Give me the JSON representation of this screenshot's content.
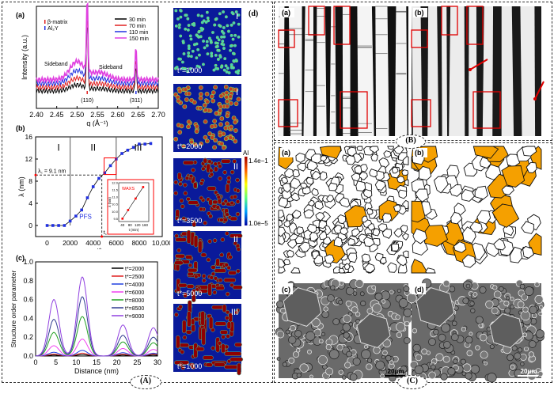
{
  "panel_labels": {
    "A": "(A)",
    "B": "(B)",
    "C": "(C)",
    "a": "(a)",
    "b": "(b)",
    "c": "(c)",
    "d": "(d)"
  },
  "chart_data": [
    {
      "id": "a",
      "type": "line",
      "xlabel": "q (Å⁻¹)",
      "ylabel": "Intensity (a.u.)",
      "xlim": [
        2.4,
        2.7
      ],
      "xticks": [
        "2.40",
        "2.45",
        "2.50",
        "2.55",
        "2.60",
        "2.65",
        "2.70"
      ],
      "legend_markers": [
        {
          "label": "β-matrix",
          "color": "#e02020"
        },
        {
          "label": "Al₂Y",
          "color": "#2030e0"
        }
      ],
      "annotations": [
        "Sideband",
        "Sideband",
        "(110)",
        "(311)"
      ],
      "peaks": {
        "q_110": 2.525,
        "q_311": 2.645,
        "sideband_low": 2.5,
        "sideband_high": 2.555
      },
      "series": [
        {
          "name": "30 min",
          "color": "#000000",
          "offset": 0.0,
          "sideband": 0.08
        },
        {
          "name": "70 min",
          "color": "#e02020",
          "offset": 0.05,
          "sideband": 0.12
        },
        {
          "name": "110 min",
          "color": "#2030e0",
          "offset": 0.1,
          "sideband": 0.17
        },
        {
          "name": "150 min",
          "color": "#e040e0",
          "offset": 0.15,
          "sideband": 0.24
        }
      ]
    },
    {
      "id": "b",
      "type": "scatter",
      "xlabel": "t*",
      "ylabel": "λ (nm)",
      "xlim": [
        -1000,
        10000
      ],
      "ylim": [
        -2,
        16
      ],
      "xticks": [
        "0",
        "2000",
        "4000",
        "6000",
        "8000",
        "10,000"
      ],
      "yticks": [
        "0",
        "4",
        "8",
        "12",
        "16"
      ],
      "regions": [
        "I",
        "II",
        "III"
      ],
      "region_bounds": [
        2000,
        6000
      ],
      "annotations": {
        "lambda_c": "λ꜀ = 9.1 nm",
        "tc": "t꜀",
        "pfs": "PFS"
      },
      "lambda_c": 9.1,
      "t_c": 4750,
      "x": [
        0,
        500,
        1000,
        1500,
        2000,
        2500,
        3000,
        3500,
        4000,
        4500,
        5000,
        5500,
        6000,
        6500,
        7000,
        7500,
        8000,
        8500,
        9000
      ],
      "y": [
        0,
        0,
        0,
        0,
        0.8,
        1.7,
        2.8,
        5.0,
        7.0,
        8.5,
        9.5,
        10.8,
        12.0,
        13.0,
        13.6,
        14.1,
        14.7,
        14.7,
        14.8
      ],
      "inset": {
        "title": "WAXS",
        "xlabel": "t (min)",
        "ylabel": "λ (nm)",
        "xlim": [
          20,
          180
        ],
        "ylim": [
          9.3,
          12.0
        ],
        "xticks": [
          "40",
          "80",
          "120",
          "160"
        ],
        "yticks": [
          "9.5",
          "10.0",
          "10.5",
          "11.0",
          "11.5",
          "12.0"
        ],
        "x": [
          40,
          70,
          110,
          150
        ],
        "y": [
          9.5,
          10.1,
          10.9,
          11.7
        ]
      }
    },
    {
      "id": "c",
      "type": "line",
      "xlabel": "Distance (nm)",
      "ylabel": "Structure order parameter",
      "xlim": [
        0,
        30
      ],
      "ylim": [
        0,
        1.0
      ],
      "xticks": [
        "0",
        "5",
        "10",
        "15",
        "20",
        "25",
        "30"
      ],
      "yticks": [
        "0.0",
        "0.2",
        "0.4",
        "0.6",
        "0.8",
        "1.0"
      ],
      "peak_positions": [
        4.5,
        11.5,
        21.5,
        29.0
      ],
      "series": [
        {
          "name": "t*=2000",
          "color": "#000000",
          "peaks": [
            0.01,
            0.015,
            0.01,
            0.01
          ]
        },
        {
          "name": "t*=2500",
          "color": "#e02020",
          "peaks": [
            0.02,
            0.03,
            0.02,
            0.02
          ]
        },
        {
          "name": "t*=4000",
          "color": "#2040e0",
          "peaks": [
            0.04,
            0.06,
            0.035,
            0.03
          ]
        },
        {
          "name": "t*=6000",
          "color": "#f040f0",
          "peaks": [
            0.11,
            0.18,
            0.08,
            0.07
          ]
        },
        {
          "name": "t*=8000",
          "color": "#20a020",
          "peaks": [
            0.25,
            0.42,
            0.15,
            0.14
          ]
        },
        {
          "name": "t*=8500",
          "color": "#303c90",
          "peaks": [
            0.39,
            0.63,
            0.22,
            0.2
          ]
        },
        {
          "name": "t*=9000",
          "color": "#9040e0",
          "peaks": [
            0.6,
            0.84,
            0.33,
            0.3
          ]
        }
      ]
    }
  ],
  "simulation": {
    "frames": [
      {
        "label": "t*=1000",
        "stage": "I"
      },
      {
        "label": "t*=2000",
        "stage": "I"
      },
      {
        "label": "t*=3500",
        "stage": "II"
      },
      {
        "label": "t*=5000",
        "stage": "II"
      },
      {
        "label": "t*=1000",
        "stage": "III"
      }
    ],
    "colorbar": {
      "title": "Al",
      "max": "1.4e−1",
      "min": "1.0e−5"
    }
  },
  "micrographs": {
    "scale_c": "20μm",
    "scale_d": "20μm",
    "grain_color": "#f5a000"
  }
}
